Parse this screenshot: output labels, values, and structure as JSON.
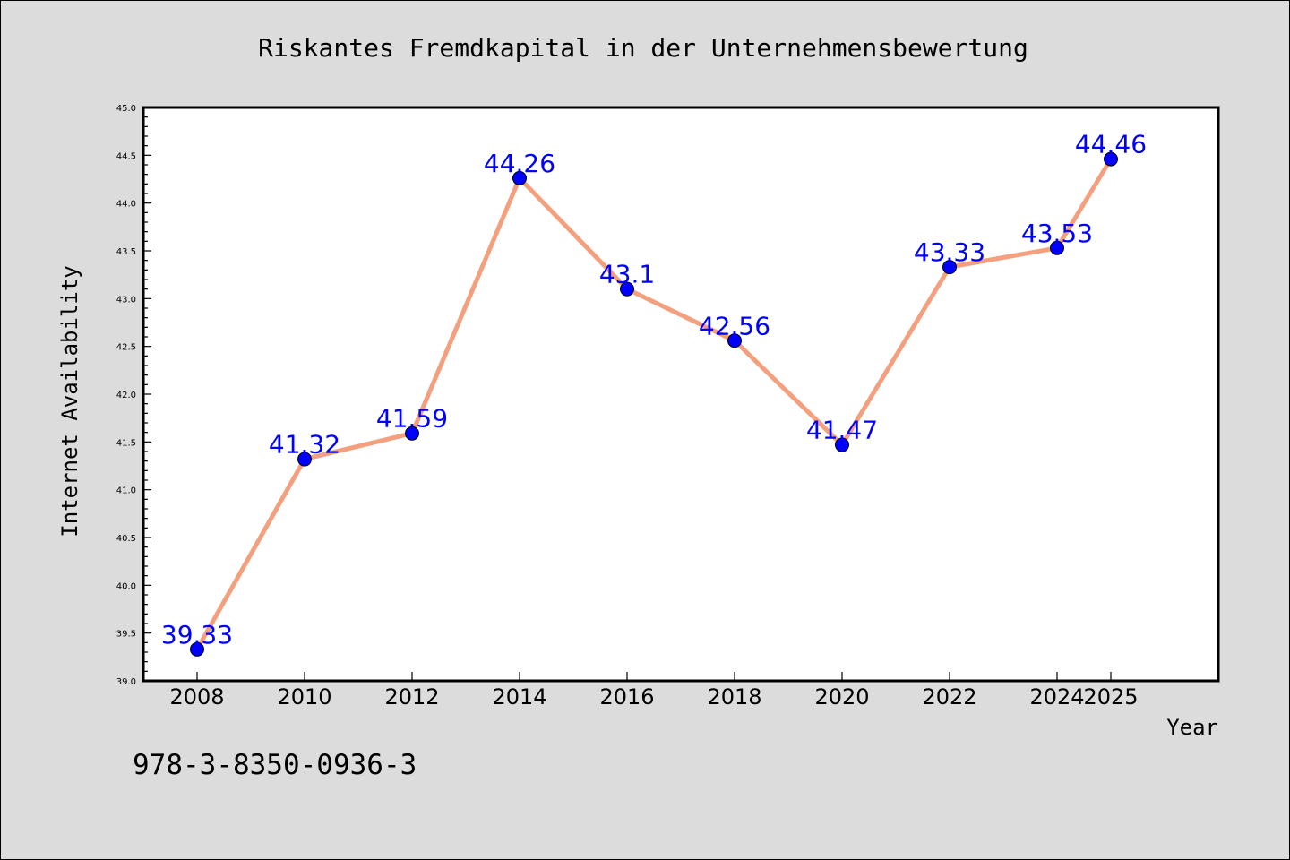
{
  "chart_data": {
    "type": "line",
    "title": "Riskantes Fremdkapital in der Unternehmensbewertung",
    "xlabel": "Year",
    "ylabel": "Internet Availability",
    "categories": [
      "2008",
      "2010",
      "2012",
      "2014",
      "2016",
      "2018",
      "2020",
      "2022",
      "2024",
      "2025"
    ],
    "series": [
      {
        "values": [
          39.33,
          41.32,
          41.59,
          44.26,
          43.1,
          42.56,
          41.47,
          43.33,
          43.53,
          44.46
        ],
        "labels": [
          "39.33",
          "41.32",
          "41.59",
          "44.26",
          "43.1",
          "42.56",
          "41.47",
          "43.33",
          "43.53",
          "44.46"
        ]
      }
    ],
    "ylim": [
      39.0,
      45.0
    ],
    "yticks": [
      "39.0",
      "39.5",
      "40.0",
      "40.5",
      "41.0",
      "41.5",
      "42.0",
      "42.5",
      "43.0",
      "43.5",
      "44.0",
      "44.5",
      "45.0"
    ],
    "grid": false,
    "line_color": "#f4a07e",
    "marker_color": "#0000ff",
    "label_color": "#0000ff"
  },
  "footnote": "978-3-8350-0936-3"
}
